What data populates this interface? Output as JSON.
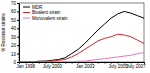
{
  "chart_data": {
    "type": "line",
    "y_label": "% Resistant strains",
    "categories": [
      "Jan 1998",
      null,
      null,
      null,
      null,
      "July 2000",
      null,
      null,
      null,
      null,
      "Jan 2003",
      null,
      null,
      null,
      null,
      "July 2005",
      null,
      null,
      null,
      "July 2007"
    ],
    "series": [
      {
        "name": "MDR",
        "color": "#000000",
        "values": [
          0,
          0,
          0,
          1,
          1,
          2,
          3,
          5,
          10,
          15,
          22,
          30,
          38,
          45,
          52,
          57,
          60,
          58,
          55,
          52
        ]
      },
      {
        "name": "Bivalent strain",
        "color": "#d62728",
        "values": [
          0,
          0,
          0,
          0,
          1,
          1,
          2,
          3,
          6,
          10,
          15,
          20,
          25,
          28,
          30,
          33,
          32,
          30,
          26,
          22
        ]
      },
      {
        "name": "Monovalent strain",
        "color": "#e377c2",
        "values": [
          0,
          0,
          0,
          0,
          0,
          0,
          0,
          0,
          0,
          1,
          1,
          2,
          3,
          4,
          5,
          6,
          7,
          8,
          10,
          11
        ]
      }
    ],
    "ylim": [
      0,
      70
    ],
    "yticks": [
      0,
      10,
      20,
      30,
      40,
      50,
      60,
      70
    ],
    "legend": "upper left"
  }
}
